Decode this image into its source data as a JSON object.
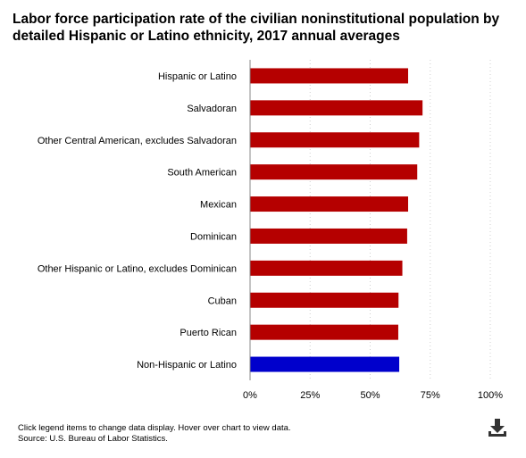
{
  "chart_data": {
    "type": "bar",
    "orientation": "horizontal",
    "title": "Labor force participation rate of the civilian noninstitutional population by detailed Hispanic or Latino ethnicity, 2017 annual averages",
    "categories": [
      "Hispanic or Latino",
      "Salvadoran",
      "Other Central American, excludes Salvadoran",
      "South American",
      "Mexican",
      "Dominican",
      "Other Hispanic or Latino, excludes Dominican",
      "Cuban",
      "Puerto Rican",
      "Non-Hispanic or Latino"
    ],
    "values": [
      65.8,
      71.8,
      70.4,
      69.6,
      65.8,
      65.4,
      63.4,
      61.8,
      61.7,
      62.1
    ],
    "bar_colors": [
      "#b50000",
      "#b50000",
      "#b50000",
      "#b50000",
      "#b50000",
      "#b50000",
      "#b50000",
      "#b50000",
      "#b50000",
      "#0000cc"
    ],
    "xlim": [
      0,
      100
    ],
    "xticks": [
      "0%",
      "25%",
      "50%",
      "75%",
      "100%"
    ],
    "grid": "vertical-dotted",
    "xlabel": "",
    "ylabel": ""
  },
  "footer": {
    "line1": "Click legend items to change data display. Hover over chart to view data.",
    "line2": "Source: U.S. Bureau of Labor Statistics."
  },
  "icons": {
    "download": "download-icon"
  }
}
